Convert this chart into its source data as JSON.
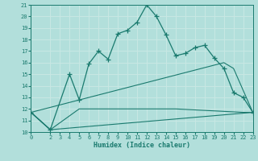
{
  "xlabel": "Humidex (Indice chaleur)",
  "background_color": "#b2dfdb",
  "grid_color": "#c8e8e4",
  "line_color": "#1a7a6e",
  "xlim": [
    0,
    23
  ],
  "ylim": [
    10,
    21
  ],
  "xticks": [
    0,
    2,
    3,
    4,
    5,
    6,
    7,
    8,
    9,
    10,
    11,
    12,
    13,
    14,
    15,
    16,
    17,
    18,
    19,
    20,
    21,
    22,
    23
  ],
  "yticks": [
    10,
    11,
    12,
    13,
    14,
    15,
    16,
    17,
    18,
    19,
    20,
    21
  ],
  "line1_x": [
    0,
    2,
    4,
    5,
    6,
    7,
    8,
    9,
    10,
    11,
    12,
    13,
    14,
    15,
    16,
    17,
    18,
    19,
    20,
    21,
    22,
    23
  ],
  "line1_y": [
    11.7,
    10.2,
    15.0,
    12.8,
    15.9,
    17.0,
    16.3,
    18.5,
    18.8,
    19.5,
    21.0,
    20.0,
    18.4,
    16.6,
    16.8,
    17.3,
    17.5,
    16.4,
    15.5,
    13.4,
    13.0,
    11.7
  ],
  "line2_x": [
    0,
    2,
    5,
    10,
    15,
    22,
    23
  ],
  "line2_y": [
    11.7,
    10.2,
    12.0,
    12.0,
    12.0,
    11.7,
    11.7
  ],
  "line3_x": [
    0,
    2,
    23
  ],
  "line3_y": [
    11.7,
    10.2,
    11.7
  ],
  "line4_x": [
    0,
    20,
    21,
    23
  ],
  "line4_y": [
    11.7,
    16.0,
    15.5,
    11.7
  ]
}
